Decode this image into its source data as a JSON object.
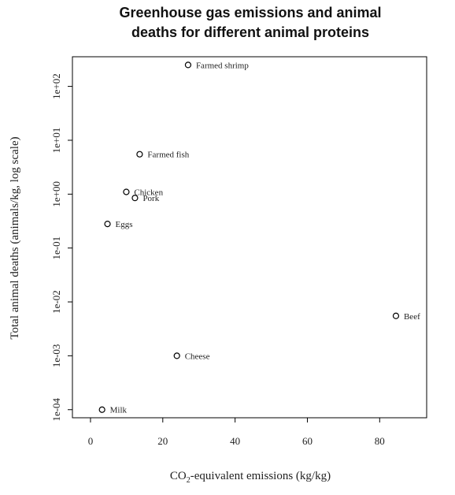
{
  "chart_data": {
    "type": "scatter",
    "title": [
      "Greenhouse gas emissions and animal",
      "deaths for different animal proteins"
    ],
    "xlabel": {
      "main": "CO",
      "sub": "2",
      "rest": "-equivalent emissions (kg/kg)"
    },
    "ylabel": "Total animal deaths (animals/kg, log scale)",
    "xlim": [
      -5,
      93
    ],
    "ylim_log10": [
      -4.15,
      2.55
    ],
    "y_scale": "log",
    "x_ticks": [
      0,
      20,
      40,
      60,
      80
    ],
    "x_tick_labels": [
      "0",
      "20",
      "40",
      "60",
      "80"
    ],
    "y_ticks": [
      0.0001,
      0.001,
      0.01,
      0.1,
      1,
      10,
      100
    ],
    "y_tick_labels": [
      "1e-04",
      "1e-03",
      "1e-02",
      "1e-01",
      "1e+00",
      "1e+01",
      "1e+02"
    ],
    "grid": false,
    "points": [
      {
        "label": "Farmed shrimp",
        "x": 27,
        "y": 250
      },
      {
        "label": "Farmed fish",
        "x": 13.6,
        "y": 5.5
      },
      {
        "label": "Chicken",
        "x": 9.9,
        "y": 1.1
      },
      {
        "label": "Pork",
        "x": 12.3,
        "y": 0.85
      },
      {
        "label": "Eggs",
        "x": 4.7,
        "y": 0.28
      },
      {
        "label": "Beef",
        "x": 84.5,
        "y": 0.0055
      },
      {
        "label": "Cheese",
        "x": 23.9,
        "y": 0.001
      },
      {
        "label": "Milk",
        "x": 3.2,
        "y": 0.0001
      }
    ]
  }
}
